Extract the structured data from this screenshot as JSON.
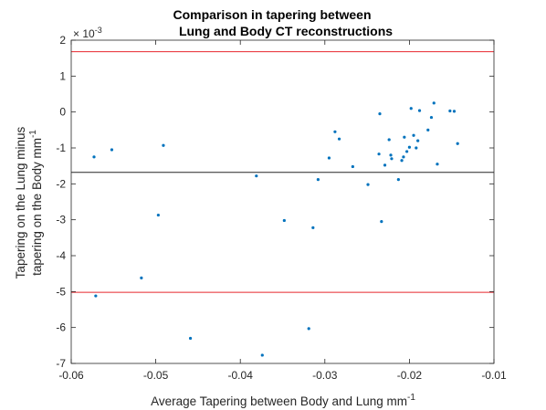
{
  "chart_data": {
    "type": "scatter",
    "title_line1": "Comparison in tapering between",
    "title_line2": "Lung and Body CT reconstructions",
    "xlabel": "Average Tapering between Body and Lung mm",
    "xlabel_sup": "-1",
    "ylabel_line1": "Tapering on the Lung minus",
    "ylabel_line2": "tapering on the Body mm",
    "ylabel_sup": "-1",
    "y_exponent_base": "× 10",
    "y_exponent_power": "-3",
    "xlim": [
      -0.06,
      -0.01
    ],
    "ylim": [
      -7,
      2
    ],
    "x_ticks": [
      -0.06,
      -0.05,
      -0.04,
      -0.03,
      -0.02,
      -0.01
    ],
    "x_tick_labels": [
      "-0.06",
      "-0.05",
      "-0.04",
      "-0.03",
      "-0.02",
      "-0.01"
    ],
    "y_ticks": [
      2,
      1,
      0,
      -1,
      -2,
      -3,
      -4,
      -5,
      -6,
      -7
    ],
    "y_tick_labels": [
      "2",
      "1",
      "0",
      "-1",
      "-2",
      "-3",
      "-4",
      "-5",
      "-6",
      "-7"
    ],
    "grid": false,
    "reference_lines": [
      {
        "y": 1.68,
        "color": "#e8262e"
      },
      {
        "y": -1.68,
        "color": "#262626"
      },
      {
        "y": -5.02,
        "color": "#e8262e"
      }
    ],
    "marker_color": "#0072bd",
    "points": [
      {
        "x": -0.0573,
        "y": -1.25
      },
      {
        "x": -0.0571,
        "y": -5.12
      },
      {
        "x": -0.0552,
        "y": -1.05
      },
      {
        "x": -0.0517,
        "y": -4.62
      },
      {
        "x": -0.0497,
        "y": -2.87
      },
      {
        "x": -0.0491,
        "y": -0.93
      },
      {
        "x": -0.0459,
        "y": -6.3
      },
      {
        "x": -0.0381,
        "y": -1.78
      },
      {
        "x": -0.0374,
        "y": -6.77
      },
      {
        "x": -0.0348,
        "y": -3.02
      },
      {
        "x": -0.0319,
        "y": -6.03
      },
      {
        "x": -0.0314,
        "y": -3.22
      },
      {
        "x": -0.0308,
        "y": -1.88
      },
      {
        "x": -0.0295,
        "y": -1.28
      },
      {
        "x": -0.0288,
        "y": -0.55
      },
      {
        "x": -0.0283,
        "y": -0.75
      },
      {
        "x": -0.0267,
        "y": -1.52
      },
      {
        "x": -0.0249,
        "y": -2.02
      },
      {
        "x": -0.0236,
        "y": -1.17
      },
      {
        "x": -0.0235,
        "y": -0.05
      },
      {
        "x": -0.0233,
        "y": -3.05
      },
      {
        "x": -0.0229,
        "y": -1.48
      },
      {
        "x": -0.0224,
        "y": -0.77
      },
      {
        "x": -0.0222,
        "y": -1.2
      },
      {
        "x": -0.0221,
        "y": -1.3
      },
      {
        "x": -0.0213,
        "y": -1.88
      },
      {
        "x": -0.0209,
        "y": -1.35
      },
      {
        "x": -0.0207,
        "y": -1.25
      },
      {
        "x": -0.0206,
        "y": -0.7
      },
      {
        "x": -0.0203,
        "y": -1.1
      },
      {
        "x": -0.02,
        "y": -0.98
      },
      {
        "x": -0.0198,
        "y": 0.1
      },
      {
        "x": -0.0195,
        "y": -0.65
      },
      {
        "x": -0.0192,
        "y": -1.0
      },
      {
        "x": -0.019,
        "y": -0.8
      },
      {
        "x": -0.0188,
        "y": 0.04
      },
      {
        "x": -0.0178,
        "y": -0.5
      },
      {
        "x": -0.0174,
        "y": -0.15
      },
      {
        "x": -0.0171,
        "y": 0.25
      },
      {
        "x": -0.0167,
        "y": -1.45
      },
      {
        "x": -0.0152,
        "y": 0.03
      },
      {
        "x": -0.0147,
        "y": 0.02
      },
      {
        "x": -0.0143,
        "y": -0.88
      }
    ]
  }
}
